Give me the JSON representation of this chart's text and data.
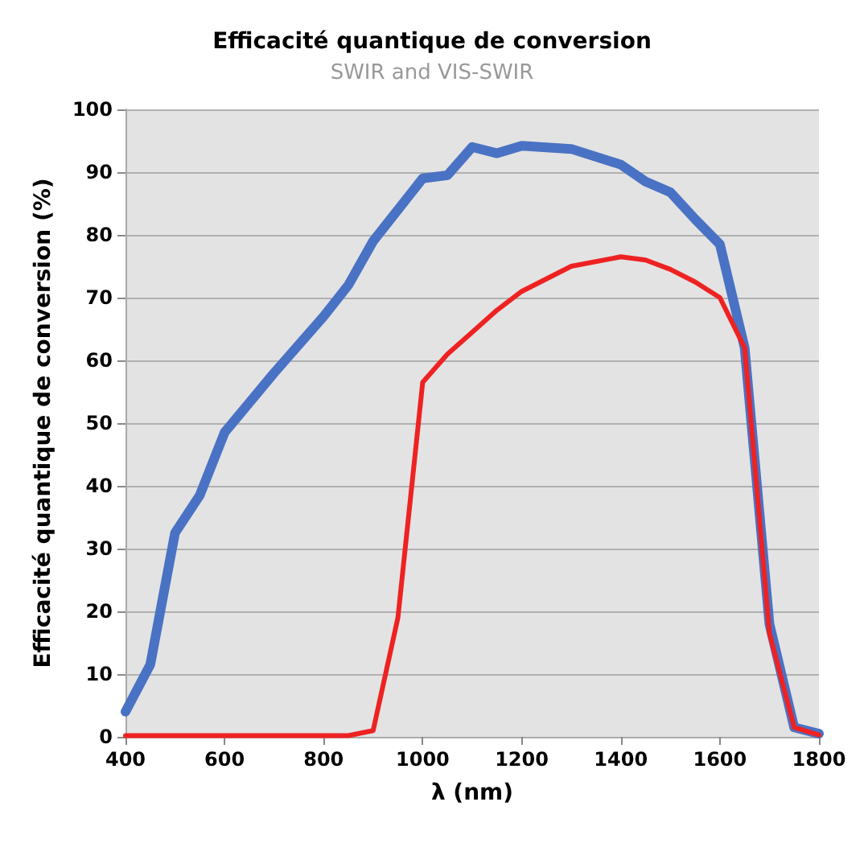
{
  "chart_data": {
    "type": "line",
    "title": "Efficacité quantique de conversion",
    "subtitle": "SWIR and VIS-SWIR",
    "xlabel": "λ (nm)",
    "ylabel": "Efficacité quantique de conversion (%)",
    "xlim": [
      400,
      1800
    ],
    "xticks": [
      400,
      600,
      800,
      1000,
      1200,
      1400,
      1600,
      1800
    ],
    "ylim": [
      0,
      100
    ],
    "yticks": [
      0,
      10,
      20,
      30,
      40,
      50,
      60,
      70,
      80,
      90,
      100
    ],
    "grid": "y",
    "line_style": "solid",
    "marker": "none",
    "series": [
      {
        "color": "#4a72c4",
        "x": [
          400,
          450,
          500,
          550,
          600,
          700,
          800,
          850,
          900,
          1000,
          1050,
          1100,
          1150,
          1200,
          1300,
          1400,
          1450,
          1500,
          1550,
          1600,
          1650,
          1700,
          1750,
          1800
        ],
        "values": [
          4,
          11.5,
          32.5,
          38.5,
          48.5,
          58,
          67,
          72,
          79,
          89,
          89.5,
          94,
          93,
          94.2,
          93.7,
          91.2,
          88.5,
          86.8,
          82.5,
          78.5,
          62,
          18,
          1.5,
          0.5
        ]
      },
      {
        "color": "#ee2222",
        "x": [
          400,
          850,
          900,
          950,
          1000,
          1050,
          1100,
          1150,
          1200,
          1300,
          1400,
          1450,
          1500,
          1550,
          1600,
          1650,
          1700,
          1750,
          1800
        ],
        "values": [
          0.2,
          0.2,
          1,
          19,
          56.5,
          61,
          64.5,
          68,
          71,
          75,
          76.5,
          76,
          74.5,
          72.5,
          70,
          62,
          16.5,
          1.5,
          0.3
        ]
      }
    ]
  }
}
